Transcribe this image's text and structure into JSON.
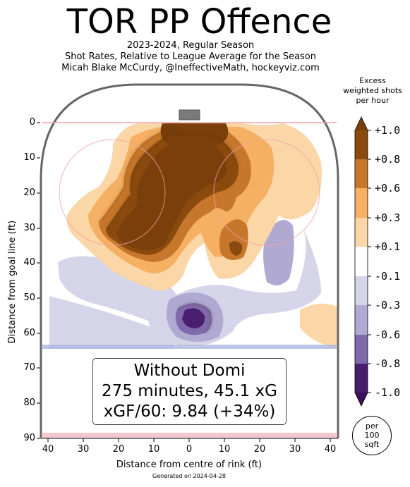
{
  "header": {
    "title": "TOR PP Offence",
    "subtitle_1": "2023-2024, Regular Season",
    "subtitle_2": "Shot Rates, Relative to League Average for the Season",
    "subtitle_3": "Micah Blake McCurdy, @IneffectiveMath, hockeyviz.com"
  },
  "colorbar": {
    "title_1": "Excess",
    "title_2": "weighted shots",
    "title_3": "per hour",
    "levels": [
      "+1.0",
      "+0.8",
      "+0.6",
      "+0.3",
      "+0.1",
      "-0.1",
      "-0.3",
      "-0.6",
      "-0.8",
      "-1.0"
    ],
    "colors": [
      "#8a4a0e",
      "#c7772b",
      "#f5b063",
      "#fbd6a6",
      "#ffffff",
      "#d6d4e8",
      "#b0aad2",
      "#7f6aab",
      "#4a1e6e"
    ],
    "arrow_top": "#7a3f0b",
    "arrow_bottom": "#3b0f5a"
  },
  "info_box": {
    "line_1": "Without Domi",
    "line_2": "275 minutes, 45.1 xG",
    "line_3": "xGF/60: 9.84 (+34%)"
  },
  "unit_badge": {
    "line_1": "per",
    "line_2": "100",
    "line_3": "sqft"
  },
  "footer": "Generated on 2024-04-28",
  "chart_data": {
    "type": "heatmap",
    "title": "TOR PP Offence",
    "xlabel": "Distance from centre of rink (ft)",
    "ylabel": "Distance from goal line (ft)",
    "x_ticks": [
      40,
      30,
      20,
      10,
      0,
      10,
      20,
      30,
      40
    ],
    "y_ticks": [
      0,
      10,
      20,
      30,
      40,
      50,
      60,
      70,
      80,
      90
    ],
    "xlim": [
      -42.5,
      42.5
    ],
    "ylim": [
      90,
      -11
    ],
    "color_scale": [
      -1.0,
      1.0
    ],
    "hotspots": [
      {
        "x": -12,
        "y": 25,
        "value": 1.0
      },
      {
        "x": 0,
        "y": 5,
        "value": 1.0
      },
      {
        "x": -16,
        "y": 38,
        "value": 0.8
      },
      {
        "x": 13,
        "y": 35,
        "value": 0.8
      },
      {
        "x": 16,
        "y": 18,
        "value": 0.6
      },
      {
        "x": 24,
        "y": 32,
        "value": 0.3
      },
      {
        "x": 1,
        "y": 55,
        "value": -1.0
      },
      {
        "x": 25,
        "y": 40,
        "value": -0.3
      },
      {
        "x": -25,
        "y": 42,
        "value": -0.1
      },
      {
        "x": 34,
        "y": 58,
        "value": 0.3
      }
    ]
  }
}
